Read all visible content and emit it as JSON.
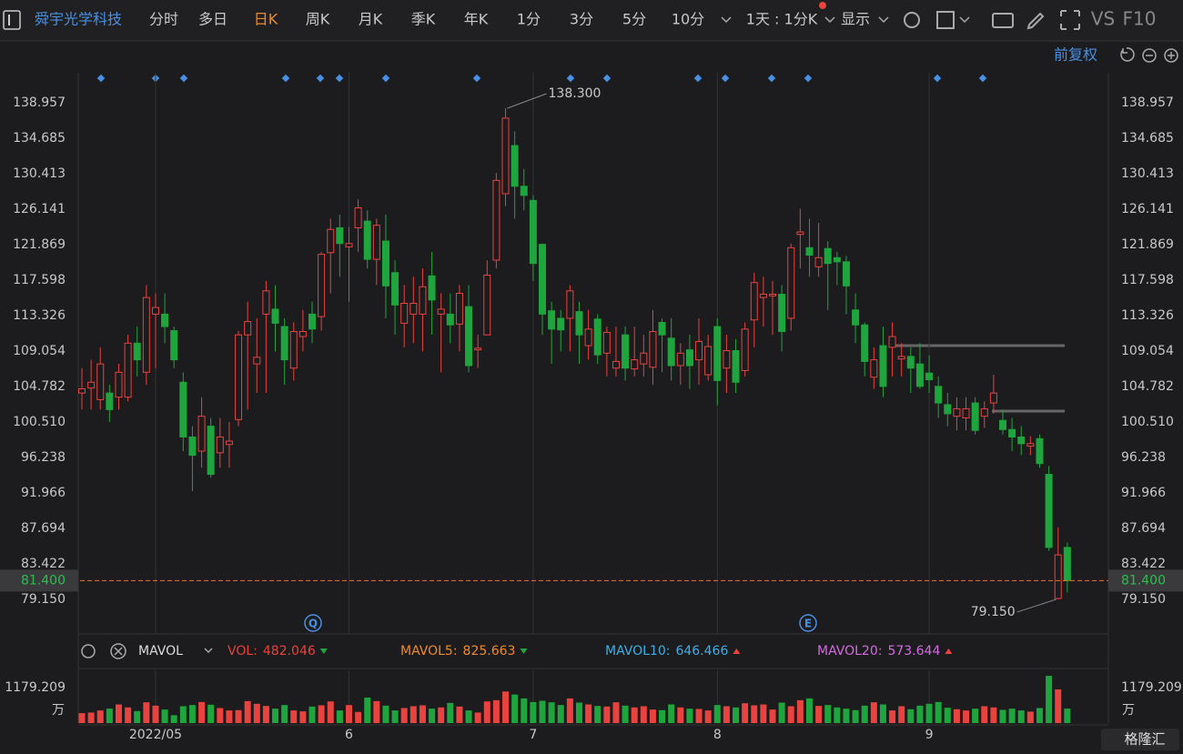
{
  "toolbar": {
    "stock_name": "舜宇光学科技",
    "tabs": [
      "分时",
      "多日",
      "日K",
      "周K",
      "月K",
      "季K",
      "年K",
      "1分",
      "3分",
      "5分",
      "10分"
    ],
    "active_tab": "日K",
    "interval": "1天 : 1分K",
    "display": "显示",
    "vs": "VS",
    "f10": "F10",
    "adjust": "前复权"
  },
  "logo": "格隆汇",
  "chart_data": [
    {
      "type": "candlestick",
      "categories": [
        null,
        null,
        null,
        null,
        null,
        null,
        null,
        null,
        "2022/05",
        null,
        null,
        null,
        null,
        null,
        null,
        null,
        null,
        null,
        null,
        null,
        null,
        null,
        null,
        null,
        null,
        null,
        null,
        null,
        null,
        "6",
        null,
        null,
        null,
        null,
        null,
        null,
        null,
        null,
        null,
        null,
        null,
        null,
        null,
        null,
        null,
        null,
        null,
        null,
        null,
        "7",
        null,
        null,
        null,
        null,
        null,
        null,
        null,
        null,
        null,
        null,
        null,
        null,
        null,
        null,
        null,
        null,
        null,
        null,
        null,
        "8",
        null,
        null,
        null,
        null,
        null,
        null,
        null,
        null,
        null,
        null,
        null,
        null,
        null,
        null,
        null,
        null,
        null,
        null,
        null,
        null,
        null,
        null,
        "9",
        null,
        null,
        null,
        null,
        null,
        null,
        null,
        null,
        null,
        null,
        null,
        null,
        null,
        null,
        null
      ],
      "open": [
        104,
        104.6,
        103.2,
        104,
        103.5,
        103.5,
        110,
        106.5,
        113.5,
        113.5,
        111.5,
        105.3,
        98.7,
        97,
        100,
        96.8,
        97.8,
        100.8,
        111,
        107.5,
        113.5,
        114.1,
        112,
        107,
        110.8,
        113.5,
        113.2,
        120.9,
        123.9,
        121.6,
        123.9,
        124.7,
        120.1,
        122.3,
        118.5,
        112.4,
        113.5,
        113.5,
        118.1,
        113.5,
        113.5,
        112.3,
        114.4,
        109.2,
        111,
        120,
        128,
        133.8,
        128.9,
        127.2,
        121.9,
        113.9,
        113,
        113,
        113.8,
        109.7,
        112.9,
        108.8,
        107,
        111,
        106.9,
        107.5,
        107.1,
        112.5,
        110.6,
        107.3,
        109.2,
        108,
        106.2,
        112,
        107,
        109.1,
        106.7,
        112.8,
        115.5,
        115.7,
        115.9,
        113,
        123.1,
        121.5,
        119.2,
        121.4,
        120.3,
        119.8,
        114,
        112.2,
        105.9,
        109.7,
        109.5,
        108.1,
        108.4,
        107.5,
        106.4,
        104.8,
        102.6,
        101.2,
        101,
        102.8,
        101.2,
        102.8,
        100.7,
        99.6,
        98.7,
        97.6,
        98.5,
        94.2,
        79.25,
        85.4
      ],
      "high": [
        107,
        108,
        109.5,
        105,
        107.5,
        111,
        112,
        117,
        116,
        116,
        112,
        106.5,
        100,
        103.5,
        101,
        101,
        100.5,
        111.5,
        115,
        113,
        117.5,
        117,
        113,
        112.5,
        114,
        115,
        121,
        125,
        125.5,
        124,
        127.3,
        126,
        125,
        125.5,
        120,
        117,
        118,
        119,
        121,
        116,
        116,
        117,
        117,
        111,
        120,
        130.5,
        138.3,
        135.5,
        131,
        127.8,
        122,
        115,
        114,
        117,
        115,
        114,
        113.5,
        112,
        112,
        112,
        112,
        111,
        114,
        113,
        113,
        110,
        111,
        113,
        111,
        113,
        111,
        110.5,
        112.5,
        118.5,
        118,
        117.5,
        117,
        122,
        126.2,
        125,
        124.5,
        122.3,
        121,
        120.5,
        116,
        112.5,
        109.5,
        112,
        112.5,
        110,
        109.5,
        110,
        108.5,
        106,
        104,
        103.5,
        103.5,
        103.5,
        103,
        106.2,
        102,
        101,
        100,
        98.8,
        99,
        95.2,
        87.8,
        86
      ],
      "low": [
        102,
        102,
        102,
        100.5,
        102,
        103,
        106,
        105,
        107,
        110,
        107,
        97,
        92.2,
        95,
        93.8,
        95,
        95,
        100,
        102,
        104,
        104,
        109,
        105,
        105.5,
        109,
        110,
        111.5,
        116,
        118,
        115,
        121,
        119,
        117,
        113,
        111,
        109.5,
        110,
        109,
        111,
        106.5,
        110,
        109,
        106.5,
        107,
        111,
        119,
        126.5,
        125,
        126,
        117.5,
        111,
        107.5,
        109,
        109,
        107.5,
        108,
        107.5,
        106,
        106,
        105.5,
        106,
        106,
        105,
        106.5,
        105.5,
        105,
        104.5,
        105,
        105.5,
        102.5,
        104,
        104,
        106,
        109.5,
        112,
        111,
        109,
        111.5,
        119,
        118,
        118,
        114,
        117,
        113.5,
        110,
        106,
        104.5,
        103.5,
        106,
        106,
        104,
        104.5,
        104,
        101,
        100,
        99.5,
        99.5,
        99,
        99.8,
        101.5,
        99,
        97,
        96.5,
        96.5,
        95,
        85,
        79.15,
        80
      ],
      "close": [
        104.5,
        105.3,
        107.5,
        102,
        106.5,
        110,
        108,
        115.5,
        114.3,
        112,
        108,
        98.7,
        96.5,
        101.2,
        94.2,
        98.7,
        98.2,
        111,
        112.6,
        108.3,
        116.3,
        112.4,
        108,
        111.4,
        111.4,
        111.7,
        120.7,
        123.7,
        122,
        122,
        126.3,
        120.1,
        124.2,
        116.9,
        114.6,
        114.8,
        114.8,
        116.8,
        115.2,
        114.1,
        112.2,
        116,
        107.3,
        109.4,
        118.2,
        129.6,
        137.1,
        128.9,
        127.8,
        119.6,
        113.5,
        111.7,
        111.6,
        116.3,
        111,
        111.7,
        108.6,
        111.3,
        107.8,
        107,
        108,
        108.8,
        111.4,
        111,
        107.3,
        108.8,
        107.3,
        110.2,
        109.6,
        105.5,
        109.1,
        105.3,
        111.7,
        117.3,
        115.9,
        115.9,
        111.4,
        121.5,
        123.4,
        120.6,
        120.3,
        119.6,
        119.8,
        116.9,
        112.2,
        107.8,
        108,
        104.8,
        110.8,
        108.4,
        107,
        104.8,
        105.6,
        102.8,
        101.5,
        102.1,
        102.1,
        99.5,
        102.1,
        104,
        99.6,
        98.7,
        97.9,
        97.9,
        95.5,
        85.4,
        84.5,
        81.4
      ],
      "up_color": "#e8433f",
      "down_color": "#1fa53d",
      "ylim": [
        74.98,
        142.57
      ],
      "yticks": [
        138.957,
        134.685,
        130.413,
        126.141,
        121.869,
        117.598,
        113.326,
        109.054,
        104.782,
        {
          "value": 100.51,
          "label": "100.510"
        },
        96.238,
        91.966,
        87.694,
        83.422,
        {
          "value": 79.15,
          "label": "79.150"
        }
      ],
      "grid": false,
      "annotations": [
        {
          "value": 138.3,
          "label": "138.300"
        },
        {
          "value": 79.15,
          "label": "79.150"
        }
      ],
      "last_price": {
        "value": 81.4,
        "label": "81.400"
      },
      "event_markers": [
        "Q",
        "E"
      ]
    },
    {
      "type": "bar",
      "indicator": "MAVOL",
      "values": [
        330,
        350,
        420,
        480,
        620,
        520,
        400,
        690,
        580,
        450,
        260,
        560,
        600,
        700,
        610,
        500,
        420,
        430,
        730,
        640,
        570,
        480,
        600,
        420,
        390,
        550,
        590,
        720,
        420,
        600,
        370,
        850,
        730,
        580,
        420,
        500,
        560,
        590,
        480,
        520,
        670,
        550,
        420,
        350,
        720,
        760,
        1050,
        950,
        820,
        700,
        740,
        690,
        600,
        820,
        680,
        620,
        570,
        550,
        690,
        580,
        520,
        560,
        450,
        430,
        620,
        520,
        480,
        470,
        420,
        600,
        560,
        520,
        660,
        590,
        620,
        450,
        680,
        560,
        760,
        820,
        570,
        600,
        520,
        480,
        430,
        580,
        690,
        620,
        420,
        560,
        460,
        580,
        640,
        700,
        510,
        460,
        420,
        480,
        560,
        520,
        440,
        480,
        420,
        380,
        500,
        1570,
        1120,
        482.046
      ],
      "ylim": [
        0,
        1603
      ],
      "yticks": [
        1179.209
      ],
      "y_unit": "万",
      "legend": [
        {
          "name": "VOL:",
          "value": 482.046,
          "color": "#e8433f"
        },
        {
          "name": "MAVOL5:",
          "value": 825.663,
          "color": "#f08a2c"
        },
        {
          "name": "MAVOL10:",
          "value": 646.466,
          "color": "#3ab0e8"
        },
        {
          "name": "MAVOL20:",
          "value": 573.644,
          "color": "#d46ae0"
        }
      ]
    }
  ]
}
